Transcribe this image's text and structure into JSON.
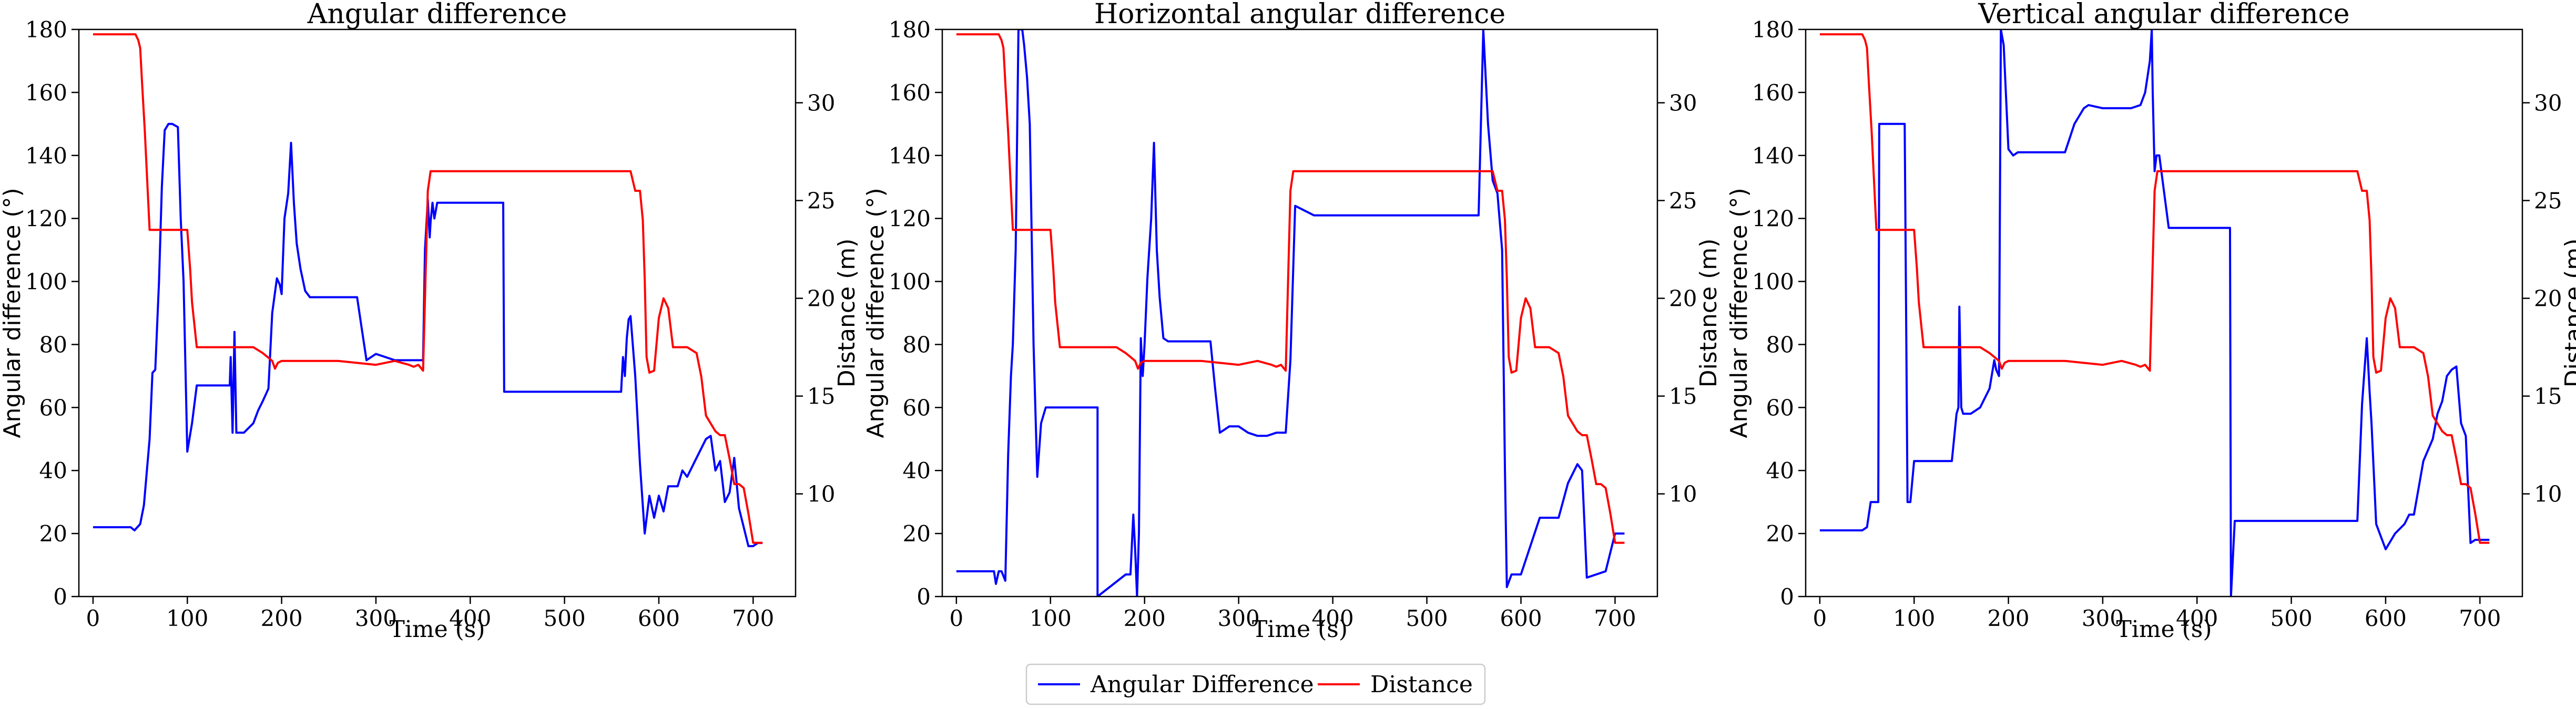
{
  "colors": {
    "angular": "#0000ff",
    "distance": "#ff0000",
    "axis": "#000000",
    "legend_border": "#cccccc"
  },
  "legend": {
    "items": [
      "Angular Difference",
      "Distance"
    ],
    "placement": "bottom-center"
  },
  "chart_data": [
    {
      "type": "line",
      "title": "Angular difference",
      "xlabel": "Time (s)",
      "ylabel": "Angular difference (°)",
      "y2label": "Distance (m)",
      "xlim": [
        -15,
        745
      ],
      "ylim": [
        0,
        180
      ],
      "y2lim": [
        4.75,
        33.75
      ],
      "xticks": [
        0,
        100,
        200,
        300,
        400,
        500,
        600,
        700
      ],
      "yticks": [
        0,
        20,
        40,
        60,
        80,
        100,
        120,
        140,
        160,
        180
      ],
      "y2ticks": [
        10,
        15,
        20,
        25,
        30
      ],
      "grid": false,
      "series": [
        {
          "name": "Angular Difference",
          "axis": "left",
          "x": [
            0,
            40,
            44,
            50,
            54,
            60,
            63,
            66,
            70,
            73,
            76,
            80,
            84,
            90,
            93,
            96,
            100,
            105,
            110,
            120,
            145,
            146,
            148,
            150,
            152,
            156,
            160,
            170,
            175,
            180,
            186,
            190,
            195,
            198,
            200,
            203,
            207,
            210,
            213,
            216,
            220,
            225,
            230,
            245,
            270,
            280,
            285,
            290,
            300,
            310,
            320,
            330,
            350,
            352,
            355,
            357,
            358,
            360,
            362,
            365,
            370,
            380,
            400,
            420,
            435,
            436,
            440,
            460,
            500,
            550,
            560,
            562,
            564,
            566,
            568,
            570,
            575,
            580,
            585,
            590,
            595,
            600,
            605,
            610,
            620,
            625,
            630,
            640,
            650,
            655,
            660,
            665,
            670,
            675,
            680,
            685,
            690,
            695,
            700,
            705,
            710
          ],
          "y": [
            22,
            22,
            21,
            23,
            29,
            50,
            71,
            72,
            100,
            130,
            148,
            150,
            150,
            149,
            120,
            100,
            46,
            55,
            67,
            67,
            67,
            76,
            52,
            84,
            52,
            52,
            52,
            55,
            59,
            62,
            66,
            90,
            101,
            99,
            96,
            120,
            128,
            144,
            125,
            112,
            104,
            97,
            95,
            95,
            95,
            95,
            85,
            75,
            77,
            76,
            75,
            75,
            75,
            110,
            126,
            114,
            119,
            125,
            120,
            125,
            125,
            125,
            125,
            125,
            125,
            65,
            65,
            65,
            65,
            65,
            65,
            76,
            70,
            82,
            88,
            89,
            70,
            42,
            20,
            32,
            25,
            32,
            27,
            35,
            35,
            40,
            38,
            44,
            50,
            51,
            40,
            43,
            30,
            33,
            44,
            28,
            22,
            16,
            16,
            17,
            17
          ]
        },
        {
          "name": "Distance",
          "axis": "right",
          "x": [
            0,
            45,
            48,
            50,
            52,
            55,
            60,
            65,
            70,
            80,
            90,
            95,
            100,
            103,
            105,
            110,
            120,
            140,
            160,
            170,
            180,
            185,
            190,
            193,
            196,
            200,
            210,
            230,
            260,
            300,
            320,
            335,
            340,
            345,
            350,
            355,
            358,
            360,
            365,
            370,
            400,
            450,
            500,
            550,
            560,
            565,
            570,
            575,
            580,
            583,
            585,
            587,
            590,
            595,
            600,
            605,
            610,
            615,
            620,
            630,
            640,
            645,
            650,
            655,
            660,
            665,
            670,
            675,
            680,
            685,
            690,
            695,
            700,
            705,
            710
          ],
          "y": [
            33.5,
            33.5,
            33.2,
            32.8,
            31.0,
            28.5,
            23.5,
            23.5,
            23.5,
            23.5,
            23.5,
            23.5,
            23.5,
            21.5,
            19.8,
            17.5,
            17.5,
            17.5,
            17.5,
            17.5,
            17.2,
            17.0,
            16.8,
            16.4,
            16.7,
            16.8,
            16.8,
            16.8,
            16.8,
            16.6,
            16.8,
            16.6,
            16.5,
            16.6,
            16.3,
            25.5,
            26.5,
            26.5,
            26.5,
            26.5,
            26.5,
            26.5,
            26.5,
            26.5,
            26.5,
            26.5,
            26.5,
            25.5,
            25.5,
            24.0,
            21.0,
            17.0,
            16.2,
            16.3,
            19.0,
            20.0,
            19.5,
            17.5,
            17.5,
            17.5,
            17.2,
            16.0,
            14.0,
            13.6,
            13.2,
            13.0,
            13.0,
            11.8,
            10.5,
            10.5,
            10.3,
            9.0,
            7.5,
            7.5,
            7.5
          ]
        }
      ]
    },
    {
      "type": "line",
      "title": "Horizontal angular difference",
      "xlabel": "Time (s)",
      "ylabel": "Angular difference (°)",
      "y2label": "Distance (m)",
      "xlim": [
        -15,
        745
      ],
      "ylim": [
        0,
        180
      ],
      "y2lim": [
        4.75,
        33.75
      ],
      "xticks": [
        0,
        100,
        200,
        300,
        400,
        500,
        600,
        700
      ],
      "yticks": [
        0,
        20,
        40,
        60,
        80,
        100,
        120,
        140,
        160,
        180
      ],
      "y2ticks": [
        10,
        15,
        20,
        25,
        30
      ],
      "grid": false,
      "series": [
        {
          "name": "Angular Difference",
          "axis": "left",
          "x": [
            0,
            35,
            40,
            42,
            45,
            48,
            52,
            55,
            58,
            60,
            63,
            66,
            70,
            72,
            75,
            78,
            82,
            86,
            90,
            95,
            100,
            105,
            150,
            150,
            180,
            185,
            188,
            190,
            192,
            194,
            196,
            198,
            200,
            203,
            207,
            210,
            213,
            216,
            220,
            225,
            230,
            270,
            275,
            280,
            290,
            300,
            310,
            320,
            330,
            340,
            350,
            355,
            360,
            380,
            400,
            500,
            550,
            555,
            560,
            565,
            570,
            575,
            580,
            583,
            585,
            590,
            600,
            620,
            630,
            640,
            650,
            660,
            665,
            670,
            690,
            700,
            710
          ],
          "y": [
            8,
            8,
            8,
            4,
            8,
            8,
            5,
            45,
            70,
            80,
            110,
            180,
            180,
            175,
            165,
            150,
            80,
            38,
            55,
            60,
            60,
            60,
            60,
            0,
            7,
            7,
            26,
            15,
            0,
            20,
            82,
            70,
            80,
            101,
            120,
            144,
            110,
            95,
            82,
            81,
            81,
            81,
            66,
            52,
            54,
            54,
            52,
            51,
            51,
            52,
            52,
            75,
            124,
            121,
            121,
            121,
            121,
            121,
            180,
            150,
            132,
            128,
            110,
            40,
            3,
            7,
            7,
            25,
            25,
            25,
            36,
            42,
            40,
            6,
            8,
            20,
            20
          ]
        },
        {
          "name": "Distance",
          "axis": "right",
          "x": [
            0,
            45,
            48,
            50,
            52,
            55,
            60,
            65,
            70,
            80,
            90,
            95,
            100,
            103,
            105,
            110,
            120,
            140,
            160,
            170,
            180,
            185,
            190,
            193,
            196,
            200,
            210,
            230,
            260,
            300,
            320,
            335,
            340,
            345,
            350,
            355,
            358,
            360,
            365,
            370,
            400,
            450,
            500,
            550,
            560,
            565,
            570,
            575,
            580,
            583,
            585,
            587,
            590,
            595,
            600,
            605,
            610,
            615,
            620,
            630,
            640,
            645,
            650,
            655,
            660,
            665,
            670,
            675,
            680,
            685,
            690,
            695,
            700,
            705,
            710
          ],
          "y": [
            33.5,
            33.5,
            33.2,
            32.8,
            31.0,
            28.5,
            23.5,
            23.5,
            23.5,
            23.5,
            23.5,
            23.5,
            23.5,
            21.5,
            19.8,
            17.5,
            17.5,
            17.5,
            17.5,
            17.5,
            17.2,
            17.0,
            16.8,
            16.4,
            16.7,
            16.8,
            16.8,
            16.8,
            16.8,
            16.6,
            16.8,
            16.6,
            16.5,
            16.6,
            16.3,
            25.5,
            26.5,
            26.5,
            26.5,
            26.5,
            26.5,
            26.5,
            26.5,
            26.5,
            26.5,
            26.5,
            26.5,
            25.5,
            25.5,
            24.0,
            21.0,
            17.0,
            16.2,
            16.3,
            19.0,
            20.0,
            19.5,
            17.5,
            17.5,
            17.5,
            17.2,
            16.0,
            14.0,
            13.6,
            13.2,
            13.0,
            13.0,
            11.8,
            10.5,
            10.5,
            10.3,
            9.0,
            7.5,
            7.5,
            7.5
          ]
        }
      ]
    },
    {
      "type": "line",
      "title": "Vertical angular difference",
      "xlabel": "Time (s)",
      "ylabel": "Angular difference (°)",
      "y2label": "Distance (m)",
      "xlim": [
        -15,
        745
      ],
      "ylim": [
        0,
        180
      ],
      "y2lim": [
        4.75,
        33.75
      ],
      "xticks": [
        0,
        100,
        200,
        300,
        400,
        500,
        600,
        700
      ],
      "yticks": [
        0,
        20,
        40,
        60,
        80,
        100,
        120,
        140,
        160,
        180
      ],
      "y2ticks": [
        10,
        15,
        20,
        25,
        30
      ],
      "grid": false,
      "series": [
        {
          "name": "Angular Difference",
          "axis": "left",
          "x": [
            0,
            40,
            45,
            50,
            54,
            58,
            62,
            63,
            65,
            70,
            90,
            93,
            96,
            100,
            105,
            110,
            130,
            140,
            145,
            147,
            148,
            150,
            152,
            155,
            160,
            170,
            180,
            185,
            187,
            190,
            192,
            195,
            200,
            205,
            210,
            230,
            260,
            270,
            280,
            285,
            300,
            330,
            340,
            345,
            350,
            352,
            353,
            355,
            357,
            360,
            370,
            400,
            435,
            436,
            440,
            500,
            560,
            565,
            570,
            575,
            580,
            583,
            585,
            590,
            600,
            610,
            620,
            625,
            630,
            640,
            650,
            655,
            660,
            665,
            670,
            675,
            680,
            685,
            690,
            695,
            700,
            710
          ],
          "y": [
            21,
            21,
            21,
            22,
            30,
            30,
            30,
            150,
            150,
            150,
            150,
            30,
            30,
            43,
            43,
            43,
            43,
            43,
            58,
            60,
            92,
            60,
            58,
            58,
            58,
            60,
            66,
            75,
            72,
            70,
            180,
            175,
            142,
            140,
            141,
            141,
            141,
            150,
            155,
            156,
            155,
            155,
            156,
            160,
            170,
            180,
            160,
            135,
            140,
            140,
            117,
            117,
            117,
            0,
            24,
            24,
            24,
            24,
            24,
            61,
            82,
            65,
            55,
            23,
            15,
            20,
            23,
            26,
            26,
            43,
            50,
            58,
            62,
            70,
            72,
            73,
            55,
            51,
            17,
            18,
            18,
            18
          ]
        },
        {
          "name": "Distance",
          "axis": "right",
          "x": [
            0,
            45,
            48,
            50,
            52,
            55,
            60,
            65,
            70,
            80,
            90,
            95,
            100,
            103,
            105,
            110,
            120,
            140,
            160,
            170,
            180,
            185,
            190,
            193,
            196,
            200,
            210,
            230,
            260,
            300,
            320,
            335,
            340,
            345,
            350,
            355,
            358,
            360,
            365,
            370,
            400,
            450,
            500,
            550,
            560,
            565,
            570,
            575,
            580,
            583,
            585,
            587,
            590,
            595,
            600,
            605,
            610,
            615,
            620,
            630,
            640,
            645,
            650,
            655,
            660,
            665,
            670,
            675,
            680,
            685,
            690,
            695,
            700,
            705,
            710
          ],
          "y": [
            33.5,
            33.5,
            33.2,
            32.8,
            31.0,
            28.5,
            23.5,
            23.5,
            23.5,
            23.5,
            23.5,
            23.5,
            23.5,
            21.5,
            19.8,
            17.5,
            17.5,
            17.5,
            17.5,
            17.5,
            17.2,
            17.0,
            16.8,
            16.4,
            16.7,
            16.8,
            16.8,
            16.8,
            16.8,
            16.6,
            16.8,
            16.6,
            16.5,
            16.6,
            16.3,
            25.5,
            26.5,
            26.5,
            26.5,
            26.5,
            26.5,
            26.5,
            26.5,
            26.5,
            26.5,
            26.5,
            26.5,
            25.5,
            25.5,
            24.0,
            21.0,
            17.0,
            16.2,
            16.3,
            19.0,
            20.0,
            19.5,
            17.5,
            17.5,
            17.5,
            17.2,
            16.0,
            14.0,
            13.6,
            13.2,
            13.0,
            13.0,
            11.8,
            10.5,
            10.5,
            10.3,
            9.0,
            7.5,
            7.5,
            7.5
          ]
        }
      ]
    }
  ]
}
